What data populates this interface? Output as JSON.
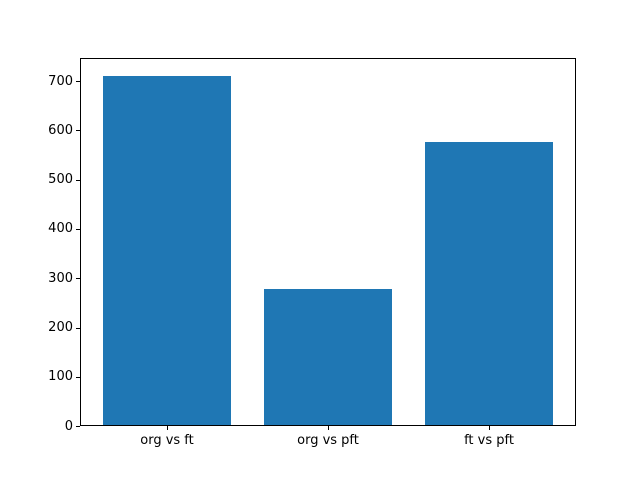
{
  "figure": {
    "background": "#ffffff",
    "frame_color": "#000000"
  },
  "chart_data": {
    "type": "bar",
    "categories": [
      "org vs ft",
      "org vs pft",
      "ft vs pft"
    ],
    "values": [
      711,
      279,
      576
    ],
    "title": "",
    "xlabel": "",
    "ylabel": "",
    "ylim": [
      0,
      747
    ],
    "yticks": [
      0,
      100,
      200,
      300,
      400,
      500,
      600,
      700
    ],
    "bar_color": "#1f77b4",
    "bar_width_fraction": 0.8,
    "axis_color": "#000000",
    "tick_label_color": "#000000",
    "grid": false,
    "legend_position": "none"
  }
}
